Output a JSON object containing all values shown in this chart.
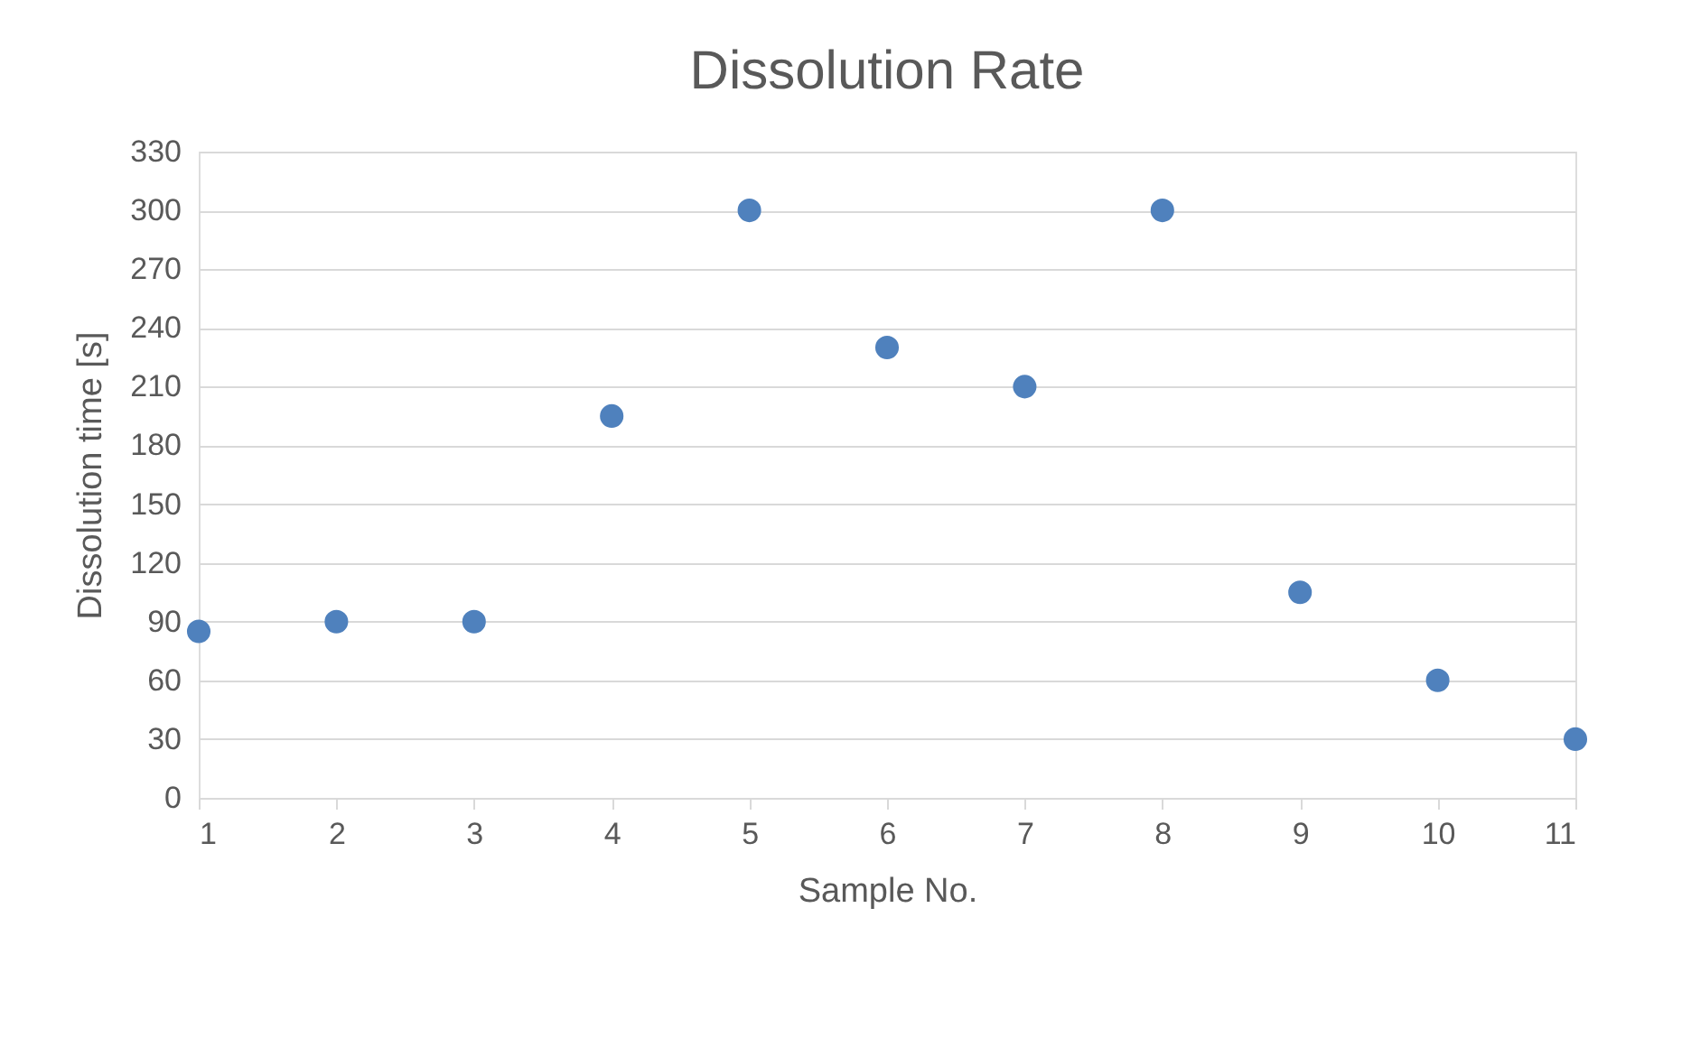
{
  "chart_data": {
    "type": "scatter",
    "title": "Dissolution Rate",
    "xlabel": "Sample No.",
    "ylabel": "Dissolution time [s]",
    "x": [
      1,
      2,
      3,
      4,
      5,
      6,
      7,
      8,
      9,
      10,
      11
    ],
    "series": [
      {
        "color": "#4f81bd",
        "values": [
          85,
          90,
          90,
          195,
          300,
          230,
          210,
          300,
          105,
          60,
          30
        ]
      }
    ],
    "xlim": [
      1,
      11
    ],
    "xticks": [
      1,
      2,
      3,
      4,
      5,
      6,
      7,
      8,
      9,
      10,
      11
    ],
    "ylim": [
      0,
      330
    ],
    "yticks": [
      0,
      30,
      60,
      90,
      120,
      150,
      180,
      210,
      240,
      270,
      300,
      330
    ],
    "grid": "y",
    "marker": "circle"
  }
}
